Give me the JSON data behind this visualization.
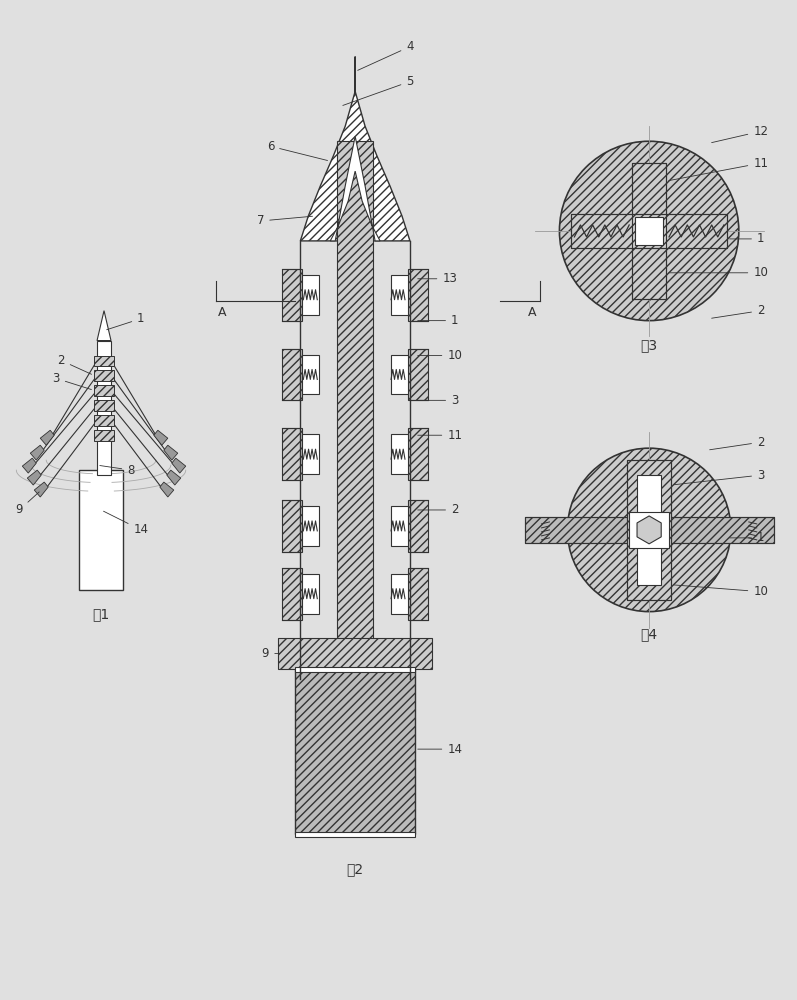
{
  "title": "",
  "background_color": "#e0e0e0",
  "fig1_label": "图1",
  "fig2_label": "图2",
  "fig3_label": "图3",
  "fig4_label": "图4",
  "line_color": "#333333",
  "fill_hatch": "#cccccc",
  "fill_dark": "#888888"
}
